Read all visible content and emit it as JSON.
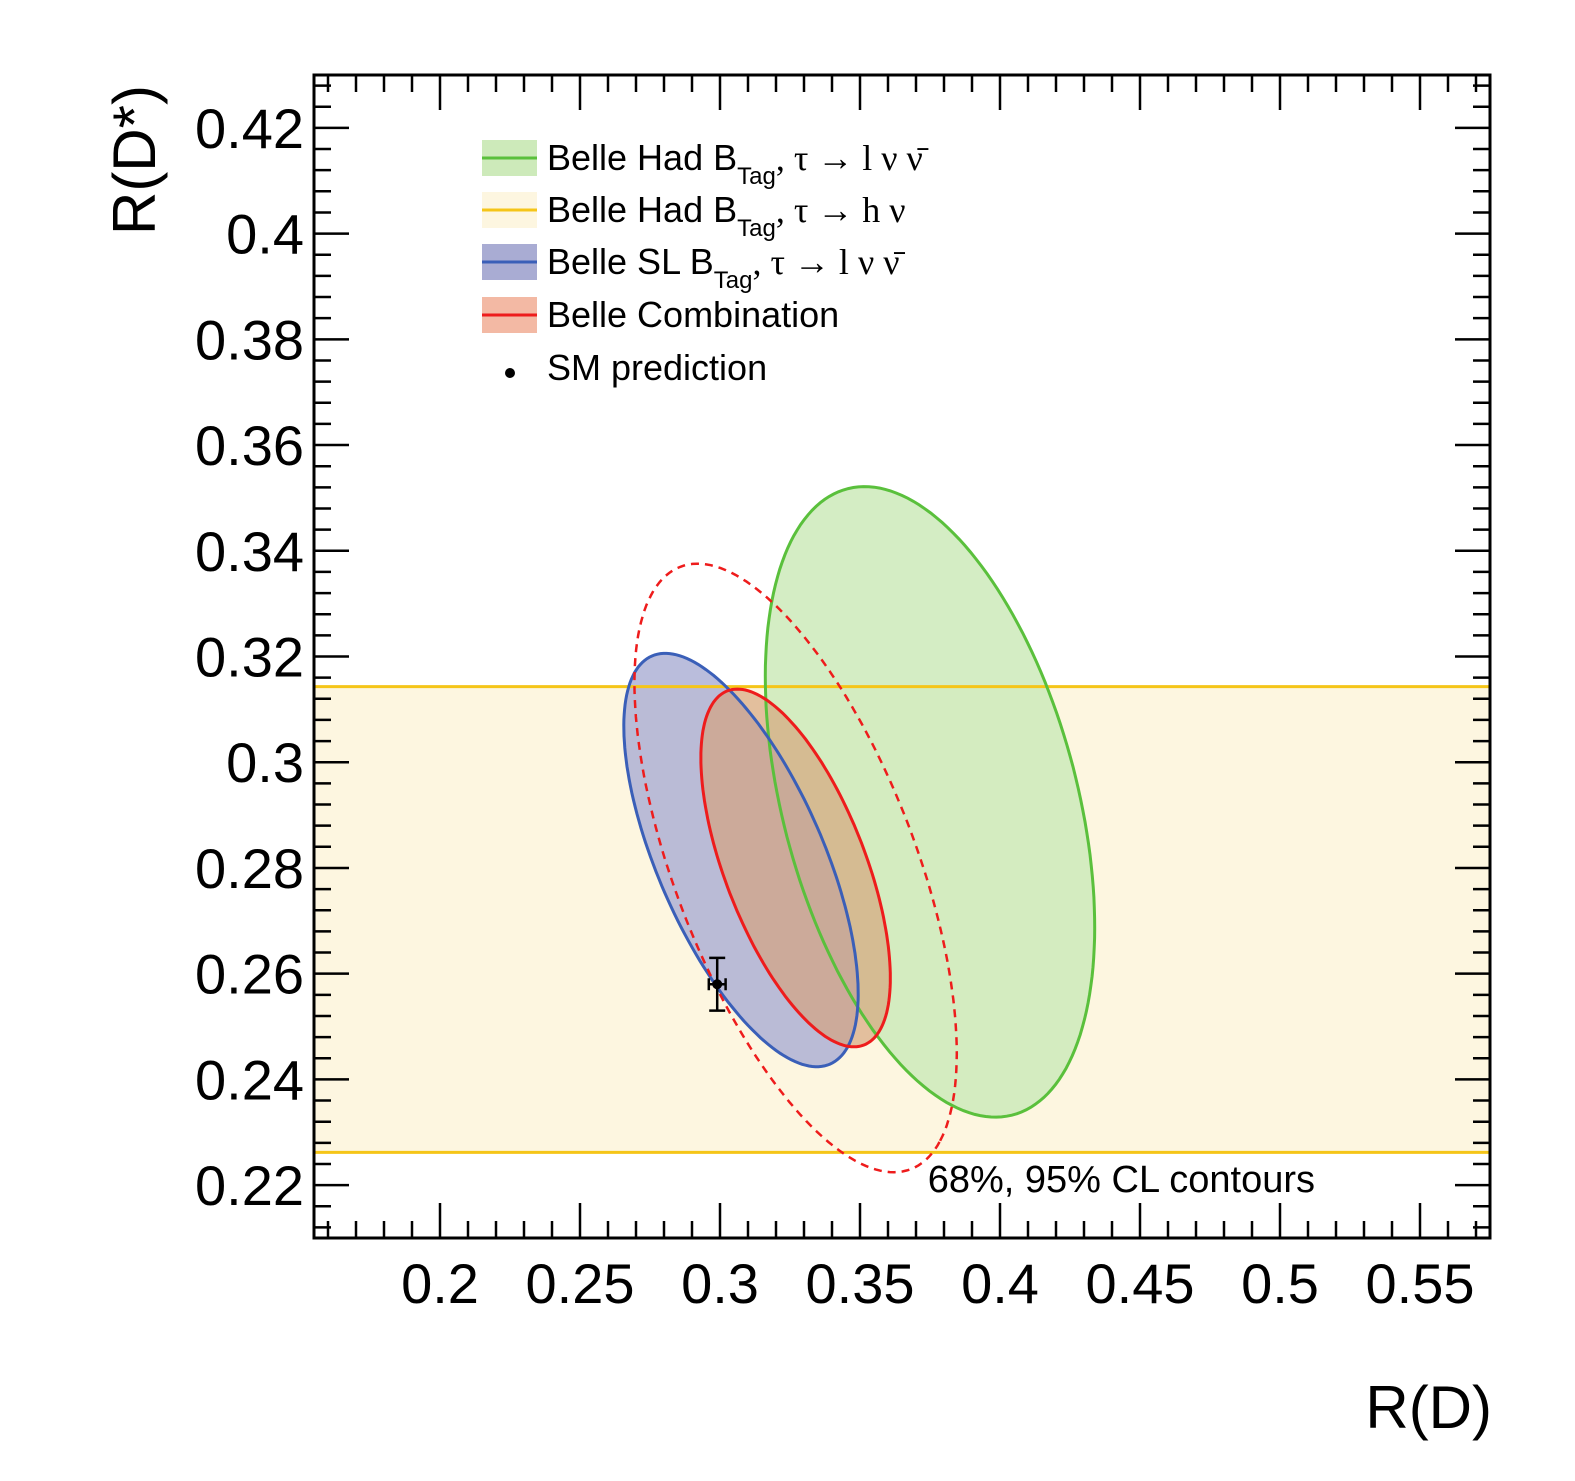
{
  "chart_data": {
    "type": "contour",
    "xlabel": "R(D)",
    "ylabel": "R(D*)",
    "xlim": [
      0.155,
      0.575
    ],
    "ylim": [
      0.21,
      0.43
    ],
    "x_ticks": [
      "0.2",
      "0.25",
      "0.3",
      "0.35",
      "0.4",
      "0.45",
      "0.5",
      "0.55"
    ],
    "y_ticks": [
      "0.22",
      "0.24",
      "0.26",
      "0.28",
      "0.3",
      "0.32",
      "0.34",
      "0.36",
      "0.38",
      "0.4",
      "0.42"
    ],
    "annotation": "68%, 95% CL contours",
    "series": [
      {
        "name": "Belle Had B_Tag, τ → l ν ν̄",
        "legend_main": "Belle Had B",
        "legend_sub": "Tag",
        "legend_rest": ", τ → l ν ν̄",
        "line_color": "#5ac03c",
        "fill_color": "#cdeaba",
        "style": "filled ellipse",
        "contour": {
          "center": [
            0.375,
            0.2925
          ],
          "semi_axis_major": 0.07,
          "semi_axis_minor": 0.046,
          "angle_deg": -46
        }
      },
      {
        "name": "Belle Had B_Tag, τ → h ν",
        "legend_main": "Belle Had B",
        "legend_sub": "Tag",
        "legend_rest": ", τ → h ν",
        "line_color": "#f5c518",
        "fill_color": "#fdf6e0",
        "style": "horizontal band",
        "band": {
          "y_low": 0.2262,
          "y_high": 0.3143
        }
      },
      {
        "name": "Belle SL B_Tag, τ → l ν ν̄",
        "legend_main": "Belle SL B",
        "legend_sub": "Tag",
        "legend_rest": ", τ → l ν ν̄",
        "line_color": "#3a5fb8",
        "fill_color": "#a9acd3",
        "style": "filled ellipse",
        "contour": {
          "center": [
            0.3075,
            0.2815
          ],
          "semi_axis_major": 0.052,
          "semi_axis_minor": 0.024,
          "angle_deg": -42
        }
      },
      {
        "name": "Belle Combination",
        "legend_main": "Belle Combination",
        "legend_sub": "",
        "legend_rest": "",
        "line_color": "#ee1c1c",
        "fill_color": "#f3b9a4",
        "style": "filled ellipse 68% + dashed 95%",
        "contour_68": {
          "center": [
            0.327,
            0.28
          ],
          "semi_axis_major": 0.043,
          "semi_axis_minor": 0.021,
          "angle_deg": -45
        },
        "contour_95": {
          "center": [
            0.327,
            0.28
          ],
          "semi_axis_major": 0.073,
          "semi_axis_minor": 0.036,
          "angle_deg": -45
        }
      },
      {
        "name": "SM prediction",
        "legend_main": "SM prediction",
        "legend_sub": "",
        "legend_rest": "",
        "line_color": "#000000",
        "style": "point",
        "point": {
          "x": 0.299,
          "y": 0.258,
          "x_err": 0.003,
          "y_err": 0.005
        }
      }
    ]
  }
}
